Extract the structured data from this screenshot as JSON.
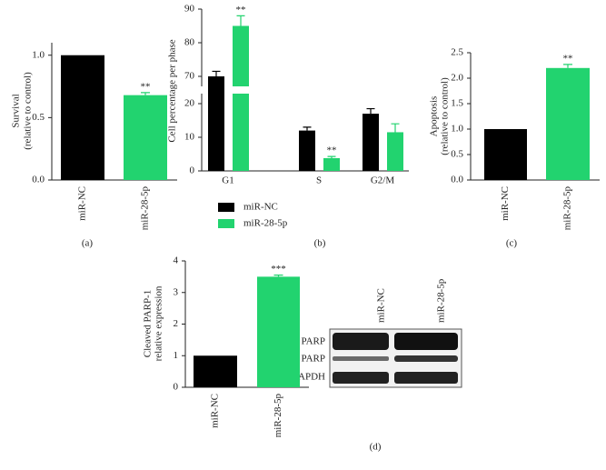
{
  "chart_data": [
    {
      "type": "bar",
      "panel_label": "(a)",
      "y_label": [
        "Survival",
        "(relative to control)"
      ],
      "categories": [
        "miR-NC",
        "miR-28-5p"
      ],
      "values": [
        1.0,
        0.68
      ],
      "errors": [
        null,
        0.02
      ],
      "significance": [
        null,
        "**"
      ],
      "colors": [
        "#000000",
        "#22d36f"
      ],
      "ylim": [
        0,
        1.1
      ],
      "yticks": [
        {
          "value": 0,
          "label": "0.0"
        },
        {
          "value": 0.5,
          "label": "0.5"
        },
        {
          "value": 1,
          "label": "1.0"
        }
      ]
    },
    {
      "type": "bar",
      "panel_label": "(b)",
      "y_label": [
        "Cell percentage per phase"
      ],
      "categories": [
        "G1",
        "S",
        "G2/M"
      ],
      "series": [
        {
          "name": "miR-NC",
          "color": "#000000",
          "values": [
            70,
            12,
            17
          ],
          "errors": [
            1.5,
            1,
            1.5
          ],
          "significance": [
            null,
            null,
            null
          ]
        },
        {
          "name": "miR-28-5p",
          "color": "#22d36f",
          "values": [
            85,
            3.8,
            11.5
          ],
          "errors": [
            3,
            0.5,
            2.5
          ],
          "significance": [
            "**",
            "**",
            null
          ]
        }
      ],
      "ylim": [
        0,
        90
      ],
      "ybreak": [
        20,
        70
      ],
      "yticks": [
        0,
        10,
        20,
        70,
        80,
        90
      ],
      "legend": "below"
    },
    {
      "type": "bar",
      "panel_label": "(c)",
      "y_label": [
        "Apoptosis",
        "(relative to control)"
      ],
      "categories": [
        "miR-NC",
        "miR-28-5p"
      ],
      "values": [
        1.0,
        2.2
      ],
      "errors": [
        null,
        0.07
      ],
      "significance": [
        null,
        "**"
      ],
      "colors": [
        "#000000",
        "#22d36f"
      ],
      "ylim": [
        0,
        2.5
      ],
      "yticks": [
        {
          "value": 0,
          "label": "0.0"
        },
        {
          "value": 0.5,
          "label": "0.5"
        },
        {
          "value": 1,
          "label": "1.0"
        },
        {
          "value": 1.5,
          "label": "1.5"
        },
        {
          "value": 2,
          "label": "2.0"
        },
        {
          "value": 2.5,
          "label": "2.5"
        }
      ]
    },
    {
      "type": "bar",
      "panel_label": "(d)",
      "y_label": [
        "Cleaved PARP-1",
        "relative expression"
      ],
      "categories": [
        "miR-NC",
        "miR-28-5p"
      ],
      "values": [
        1,
        3.5
      ],
      "errors": [
        null,
        0.05
      ],
      "significance": [
        null,
        "***"
      ],
      "colors": [
        "#000000",
        "#22d36f"
      ],
      "ylim": [
        0,
        4
      ],
      "yticks": [
        0,
        1,
        2,
        3,
        4
      ]
    }
  ],
  "blot": {
    "columns": [
      "miR-NC",
      "miR-28-5p"
    ],
    "rows": [
      "PARP",
      "Cleaved PARP",
      "GAPDH"
    ]
  }
}
